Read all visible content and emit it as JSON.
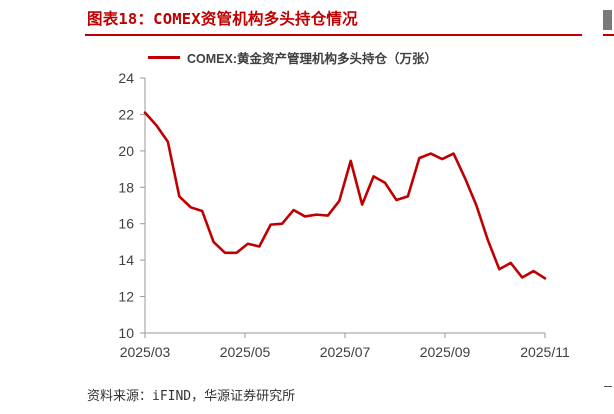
{
  "header": {
    "title": "图表18：COMEX资管机构多头持仓情况"
  },
  "footer": {
    "source": "资料来源：iFIND，华源证券研究所"
  },
  "colors": {
    "accent": "#c00000",
    "axis": "#999999",
    "text": "#404040"
  },
  "chart_data": {
    "type": "line",
    "title": "",
    "xlabel": "",
    "ylabel": "",
    "ylim": [
      10,
      24
    ],
    "yticks": [
      10,
      12,
      14,
      16,
      18,
      20,
      22,
      24
    ],
    "xtick_labels": [
      "2025/03",
      "2025/05",
      "2025/07",
      "2025/09",
      "2025/11"
    ],
    "x_range": [
      "2025-03-04",
      "2025-11-04"
    ],
    "grid": false,
    "legend": "top-center",
    "series": [
      {
        "name": "COMEX:黄金资产管理机构多头持仓（万张）",
        "x": [
          "2025-03-04",
          "2025-03-11",
          "2025-03-18",
          "2025-03-25",
          "2025-04-01",
          "2025-04-08",
          "2025-04-15",
          "2025-04-22",
          "2025-04-29",
          "2025-05-06",
          "2025-05-13",
          "2025-05-20",
          "2025-05-27",
          "2025-06-03",
          "2025-06-10",
          "2025-06-17",
          "2025-06-24",
          "2025-07-01",
          "2025-07-08",
          "2025-07-15",
          "2025-07-22",
          "2025-07-29",
          "2025-08-05",
          "2025-08-12",
          "2025-08-19",
          "2025-08-26",
          "2025-09-02",
          "2025-09-09",
          "2025-09-16",
          "2025-09-23",
          "2025-09-30",
          "2025-10-07",
          "2025-10-14",
          "2025-10-21",
          "2025-10-28",
          "2025-11-04"
        ],
        "values": [
          22.1,
          21.4,
          20.5,
          17.5,
          16.9,
          16.7,
          15.0,
          14.4,
          14.4,
          14.9,
          14.75,
          15.95,
          16.0,
          16.75,
          16.4,
          16.5,
          16.45,
          17.25,
          19.45,
          17.05,
          18.6,
          18.25,
          17.3,
          17.5,
          19.6,
          19.85,
          19.55,
          19.85,
          18.5,
          17.0,
          15.1,
          13.5,
          13.85,
          13.05,
          13.4,
          13.0
        ]
      }
    ]
  }
}
